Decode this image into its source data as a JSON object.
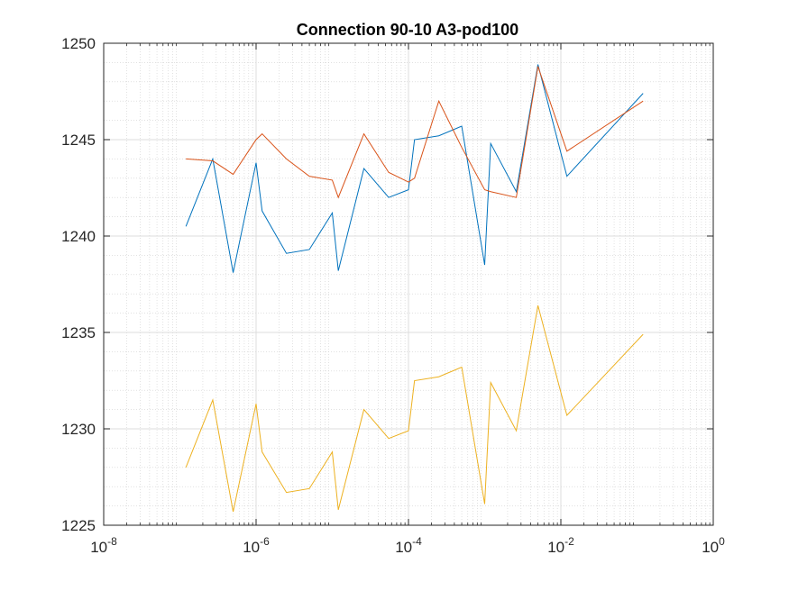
{
  "chart_data": {
    "type": "line",
    "title": "Connection 90-10 A3-pod100",
    "xlabel": "",
    "ylabel": "",
    "xscale": "log",
    "xlim_exponents": [
      -8,
      0
    ],
    "x_tick_exponents": [
      -8,
      -6,
      -4,
      -2,
      0
    ],
    "ylim": [
      1225,
      1250
    ],
    "y_ticks": [
      1225,
      1230,
      1235,
      1240,
      1245,
      1250
    ],
    "grid": "major and minor",
    "legend": "none",
    "x": [
      1.2e-07,
      2.7e-07,
      5e-07,
      1e-06,
      1.2e-06,
      2.5e-06,
      5e-06,
      1e-05,
      1.2e-05,
      2.6e-05,
      5.5e-05,
      0.0001,
      0.00012,
      0.00025,
      0.0005,
      0.001,
      0.0012,
      0.0026,
      0.005,
      0.012,
      0.12
    ],
    "series": [
      {
        "color": "#0072BD",
        "values": [
          1240.5,
          1244.0,
          1238.1,
          1243.8,
          1241.3,
          1239.1,
          1239.3,
          1241.2,
          1238.2,
          1243.5,
          1242.0,
          1242.4,
          1245.0,
          1245.2,
          1245.7,
          1238.5,
          1244.8,
          1242.3,
          1248.9,
          1243.1,
          1247.4
        ]
      },
      {
        "color": "#D95319",
        "values": [
          1244.0,
          1243.9,
          1243.2,
          1245.0,
          1245.3,
          1244.0,
          1243.1,
          1242.9,
          1242.0,
          1245.3,
          1243.3,
          1242.8,
          1243.0,
          1247.0,
          1244.6,
          1242.4,
          1242.3,
          1242.0,
          1248.8,
          1244.4,
          1247.0
        ]
      },
      {
        "color": "#EDB120",
        "values": [
          1228.0,
          1231.5,
          1225.7,
          1231.3,
          1228.8,
          1226.7,
          1226.9,
          1228.8,
          1225.8,
          1231.0,
          1229.5,
          1229.9,
          1232.5,
          1232.7,
          1233.2,
          1226.1,
          1232.4,
          1229.9,
          1236.4,
          1230.7,
          1234.9
        ]
      }
    ]
  }
}
